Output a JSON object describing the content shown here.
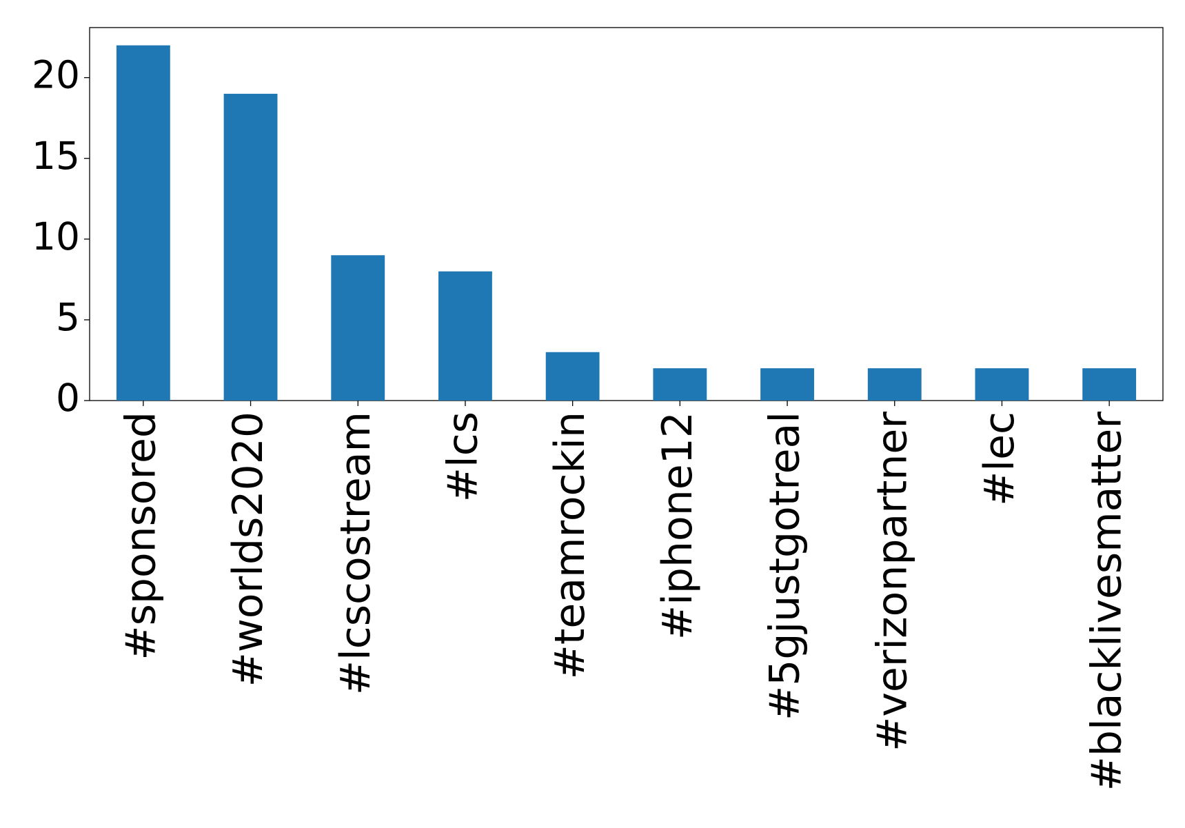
{
  "chart_data": {
    "type": "bar",
    "categories": [
      "#sponsored",
      "#worlds2020",
      "#lcscostream",
      "#lcs",
      "#teamrockin",
      "#iphone12",
      "#5gjustgotreal",
      "#verizonpartner",
      "#lec",
      "#blacklivesmatter"
    ],
    "values": [
      22,
      19,
      9,
      8,
      3,
      2,
      2,
      2,
      2,
      2
    ],
    "color": "#1f77b4",
    "ylim": [
      0,
      23.1
    ],
    "yticks": [
      0,
      5,
      10,
      15,
      20
    ],
    "grid": false
  }
}
